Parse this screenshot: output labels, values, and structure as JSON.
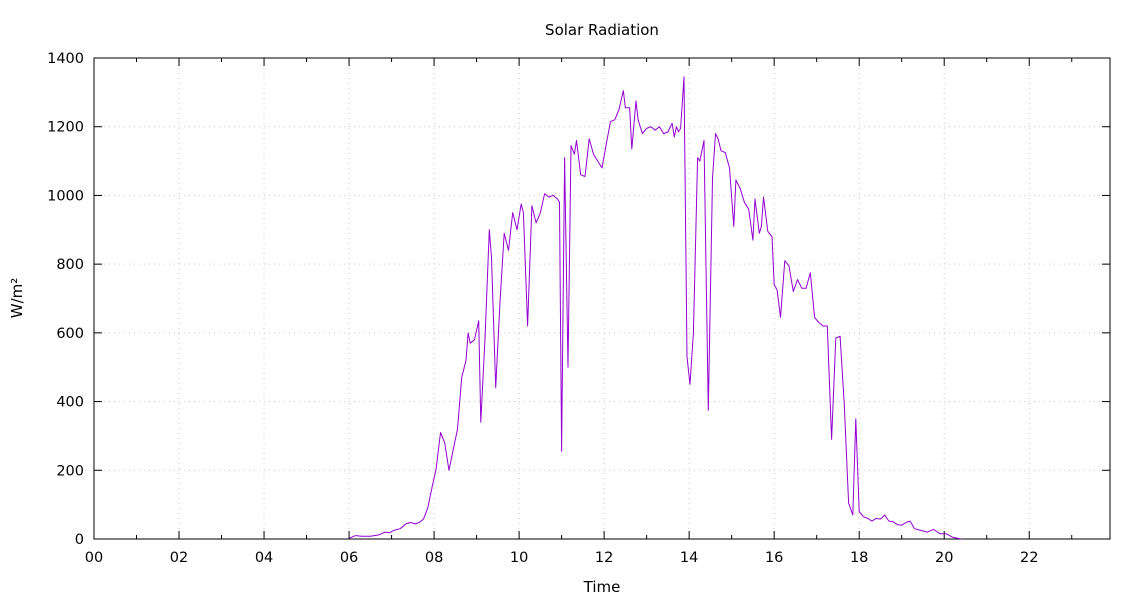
{
  "chart_data": {
    "type": "line",
    "title": "Solar Radiation",
    "xlabel": "Time",
    "ylabel": "W/m²",
    "xlim": [
      0,
      23.9
    ],
    "ylim": [
      0,
      1400
    ],
    "x_ticks": [
      0,
      2,
      4,
      6,
      8,
      10,
      12,
      14,
      16,
      18,
      20,
      22
    ],
    "x_tick_labels": [
      "00",
      "02",
      "04",
      "06",
      "08",
      "10",
      "12",
      "14",
      "16",
      "18",
      "20",
      "22"
    ],
    "y_ticks": [
      0,
      200,
      400,
      600,
      800,
      1000,
      1200,
      1400
    ],
    "y_tick_labels": [
      "0",
      "200",
      "400",
      "600",
      "800",
      "1000",
      "1200",
      "1400"
    ],
    "grid": true,
    "line_color": "#9400d3",
    "series": [
      {
        "x": [
          6.0,
          6.15,
          6.3,
          6.5,
          6.7,
          6.85,
          6.95,
          7.05,
          7.2,
          7.35,
          7.45,
          7.55,
          7.65,
          7.75,
          7.85,
          7.95,
          8.05,
          8.15,
          8.25,
          8.35,
          8.45,
          8.55,
          8.65,
          8.75,
          8.8,
          8.85,
          8.95,
          9.05,
          9.1,
          9.2,
          9.3,
          9.35,
          9.45,
          9.55,
          9.65,
          9.75,
          9.85,
          9.95,
          10.05,
          10.1,
          10.2,
          10.3,
          10.4,
          10.5,
          10.6,
          10.7,
          10.8,
          10.9,
          10.95,
          11.0,
          11.07,
          11.15,
          11.22,
          11.3,
          11.35,
          11.45,
          11.55,
          11.65,
          11.75,
          11.85,
          11.95,
          12.05,
          12.15,
          12.25,
          12.35,
          12.45,
          12.5,
          12.6,
          12.65,
          12.75,
          12.8,
          12.9,
          13.0,
          13.1,
          13.2,
          13.3,
          13.4,
          13.5,
          13.6,
          13.65,
          13.7,
          13.75,
          13.8,
          13.88,
          13.95,
          14.02,
          14.1,
          14.2,
          14.25,
          14.35,
          14.45,
          14.55,
          14.62,
          14.68,
          14.75,
          14.85,
          14.95,
          15.05,
          15.1,
          15.2,
          15.3,
          15.4,
          15.5,
          15.55,
          15.65,
          15.7,
          15.75,
          15.85,
          15.95,
          16.0,
          16.07,
          16.15,
          16.25,
          16.35,
          16.45,
          16.55,
          16.65,
          16.75,
          16.85,
          16.95,
          17.05,
          17.15,
          17.25,
          17.35,
          17.45,
          17.55,
          17.65,
          17.75,
          17.85,
          17.92,
          18.0,
          18.1,
          18.2,
          18.3,
          18.4,
          18.5,
          18.6,
          18.7,
          18.8,
          18.9,
          19.0,
          19.1,
          19.2,
          19.3,
          19.45,
          19.6,
          19.75,
          19.9,
          20.05,
          20.2,
          20.4
        ],
        "y": [
          2,
          10,
          8,
          8,
          12,
          20,
          18,
          25,
          30,
          45,
          48,
          44,
          48,
          58,
          90,
          150,
          205,
          310,
          280,
          200,
          260,
          320,
          470,
          520,
          600,
          570,
          580,
          635,
          340,
          590,
          900,
          820,
          440,
          690,
          890,
          840,
          950,
          900,
          975,
          950,
          620,
          970,
          920,
          950,
          1005,
          995,
          1000,
          990,
          980,
          255,
          1110,
          500,
          1145,
          1120,
          1160,
          1060,
          1055,
          1165,
          1120,
          1100,
          1080,
          1150,
          1215,
          1220,
          1250,
          1305,
          1255,
          1255,
          1135,
          1275,
          1220,
          1180,
          1195,
          1200,
          1190,
          1200,
          1180,
          1185,
          1210,
          1170,
          1200,
          1185,
          1195,
          1345,
          530,
          450,
          600,
          1110,
          1100,
          1160,
          375,
          1050,
          1180,
          1165,
          1130,
          1125,
          1080,
          910,
          1045,
          1020,
          980,
          960,
          870,
          990,
          890,
          910,
          995,
          895,
          880,
          740,
          725,
          645,
          810,
          795,
          720,
          755,
          730,
          730,
          775,
          645,
          630,
          620,
          620,
          290,
          585,
          590,
          390,
          105,
          70,
          350,
          80,
          65,
          60,
          52,
          60,
          58,
          70,
          52,
          50,
          42,
          40,
          48,
          52,
          30,
          25,
          20,
          28,
          15,
          15,
          5,
          0
        ]
      }
    ]
  }
}
